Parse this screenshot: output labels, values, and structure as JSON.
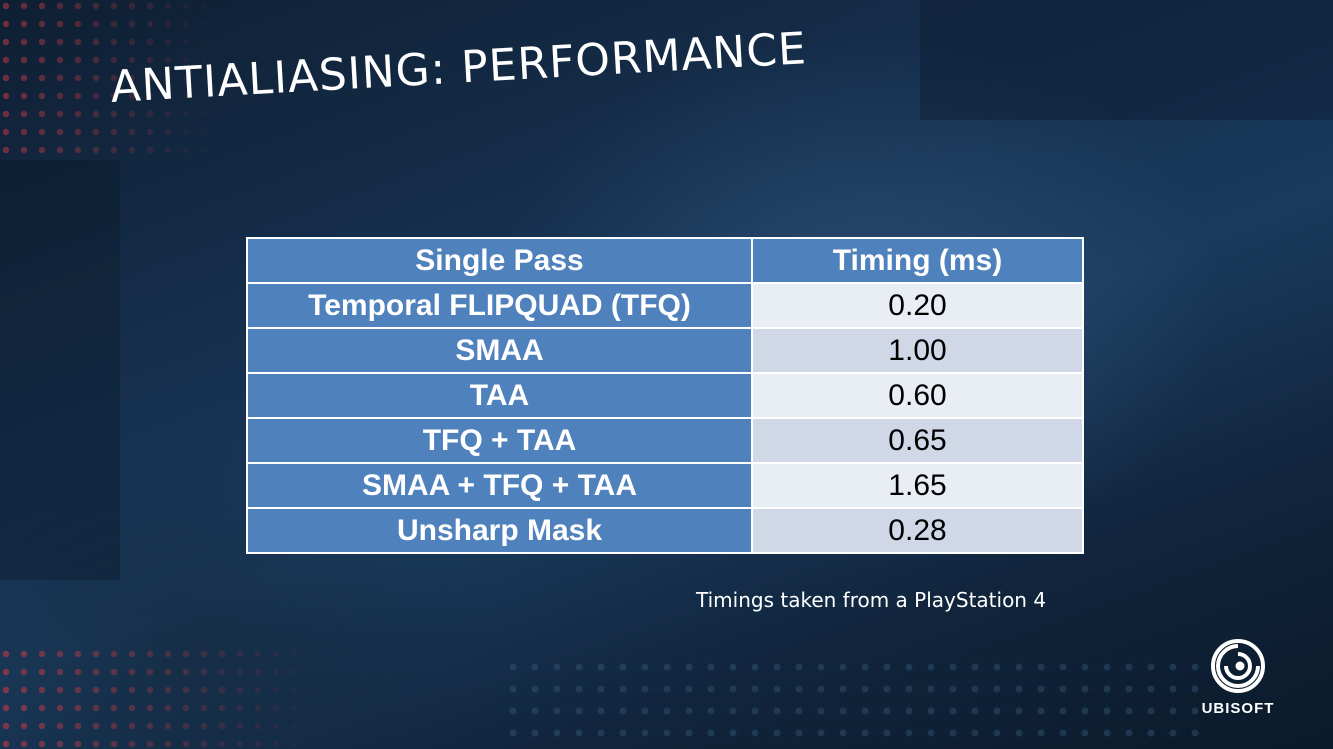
{
  "slide": {
    "title": "ANTIALIASING: PERFORMANCE",
    "footnote": "Timings taken from a PlayStation 4"
  },
  "table": {
    "headers": [
      "Single Pass",
      "Timing (ms)"
    ],
    "rows": [
      {
        "name": "Temporal FLIPQUAD (TFQ)",
        "timing": "0.20"
      },
      {
        "name": "SMAA",
        "timing": "1.00"
      },
      {
        "name": "TAA",
        "timing": "0.60"
      },
      {
        "name": "TFQ + TAA",
        "timing": "0.65"
      },
      {
        "name": "SMAA + TFQ + TAA",
        "timing": "1.65"
      },
      {
        "name": "Unsharp Mask",
        "timing": "0.28"
      }
    ]
  },
  "logo": {
    "text": "UBISOFT",
    "icon": "ubisoft-swirl-icon"
  },
  "colors": {
    "header_fill": "#4f81bd",
    "row_fill_dark": "#d0d8e8",
    "row_fill_light": "#e9edf4",
    "background": "#163150"
  }
}
